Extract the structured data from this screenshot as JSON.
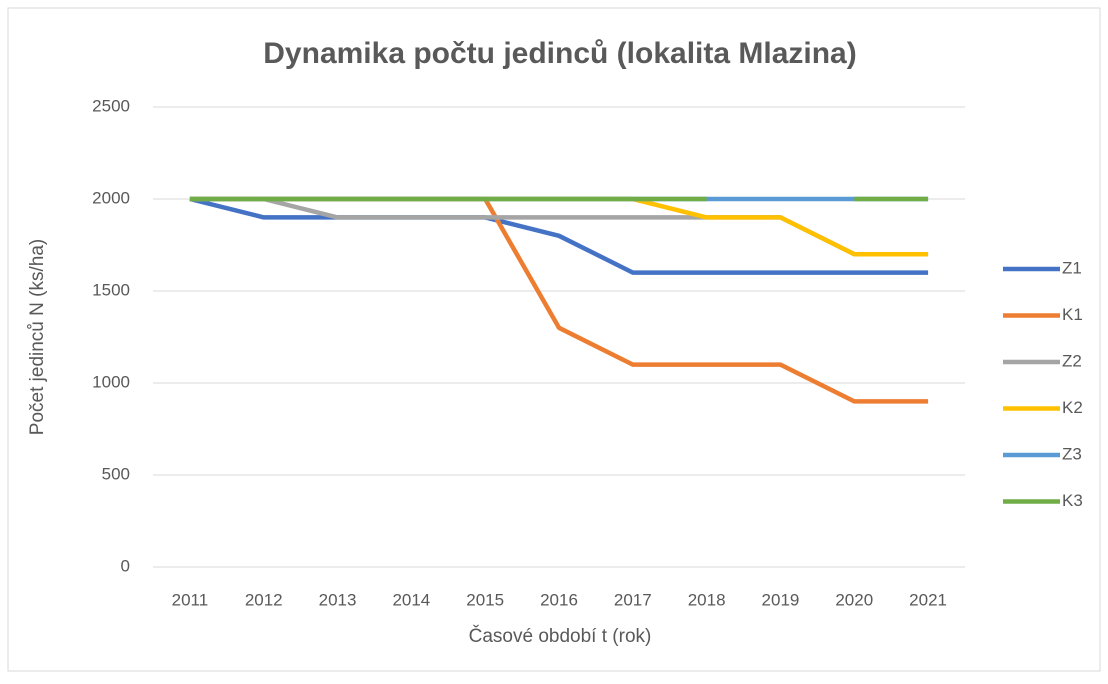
{
  "chart_data": {
    "type": "line",
    "title": "Dynamika počtu jedinců (lokalita Mlazina)",
    "x_label": "Časové období t (rok)",
    "y_label": "Počet jedinců N (ks/ha)",
    "categories": [
      "2011",
      "2012",
      "2013",
      "2014",
      "2015",
      "2016",
      "2017",
      "2018",
      "2019",
      "2020",
      "2021"
    ],
    "series": [
      {
        "name": "Z1",
        "color": "#4472c4",
        "values": [
          2000,
          1900,
          1900,
          1900,
          1900,
          1800,
          1600,
          1600,
          1600,
          1600,
          1600
        ]
      },
      {
        "name": "K1",
        "color": "#ed7d31",
        "values": [
          2000,
          2000,
          2000,
          2000,
          2000,
          1300,
          1100,
          1100,
          1100,
          900,
          900
        ]
      },
      {
        "name": "Z2",
        "color": "#a5a5a5",
        "values": [
          2000,
          2000,
          1900,
          1900,
          1900,
          1900,
          1900,
          1900,
          1900,
          1700,
          1700
        ]
      },
      {
        "name": "K2",
        "color": "#ffc000",
        "values": [
          2000,
          2000,
          2000,
          2000,
          2000,
          2000,
          2000,
          1900,
          1900,
          1700,
          1700
        ]
      },
      {
        "name": "Z3",
        "color": "#5b9bd5",
        "values": [
          2000,
          2000,
          2000,
          2000,
          2000,
          2000,
          2000,
          2000,
          2000,
          2000,
          2000
        ]
      },
      {
        "name": "K3",
        "color": "#70ad47",
        "values": [
          2000,
          2000,
          2000,
          2000,
          2000,
          2000,
          2000,
          2000,
          null,
          2000,
          2000
        ]
      }
    ],
    "ylim": [
      0,
      2500
    ],
    "yticks": [
      0,
      500,
      1000,
      1500,
      2000,
      2500
    ],
    "grid": true,
    "legend": "right"
  }
}
